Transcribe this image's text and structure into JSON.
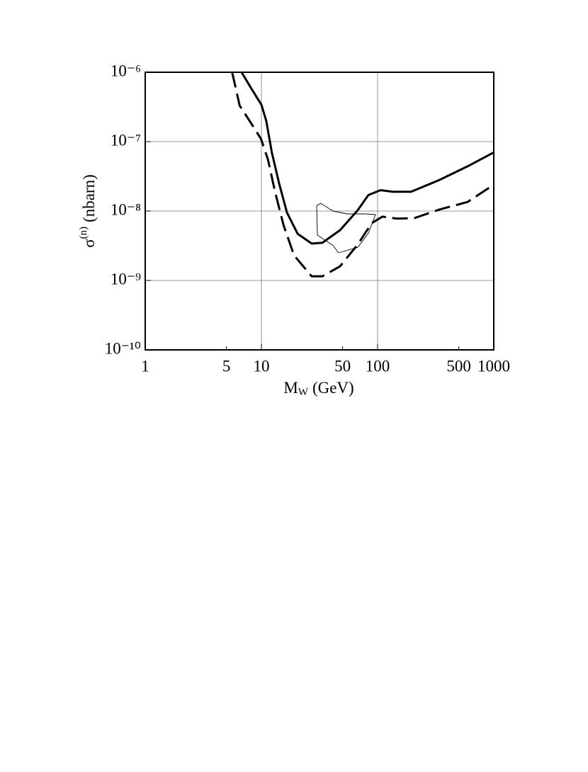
{
  "chart_data": {
    "type": "line",
    "x_label": [
      "M",
      "W",
      "(GeV)"
    ],
    "y_label": [
      "σ",
      "(n)",
      "(nbarn)"
    ],
    "xscale": "log",
    "yscale": "log",
    "grid": true,
    "xlim": [
      1,
      1000
    ],
    "ylim": [
      1e-10,
      1e-06
    ],
    "xticks": [
      1,
      5,
      10,
      50,
      100,
      500,
      1000
    ],
    "yticks": [
      {
        "value": 1e-10,
        "label": "10⁻¹⁰"
      },
      {
        "value": 1e-09,
        "label": "10⁻⁹"
      },
      {
        "value": 1e-08,
        "label": "10⁻⁸"
      },
      {
        "value": 1e-07,
        "label": "10⁻⁷"
      },
      {
        "value": 1e-06,
        "label": "10⁻⁶"
      }
    ],
    "series": [
      {
        "color": "#000000",
        "style": "solid",
        "x": [
          6.75,
          8.2,
          10,
          11.0,
          12.3,
          14.2,
          16.6,
          20.5,
          27.1,
          33.5,
          47.5,
          67.5,
          83.3,
          106,
          136,
          194,
          339,
          594,
          1000
        ],
        "y": [
          1e-06,
          5.8e-07,
          3.4e-07,
          2e-07,
          7e-08,
          2.5e-08,
          9.5e-09,
          4.7e-09,
          3.4e-09,
          3.5e-09,
          5.3e-09,
          1.03e-08,
          1.7e-08,
          2e-08,
          1.9e-08,
          1.9e-08,
          2.8e-08,
          4.4e-08,
          7e-08
        ]
      },
      {
        "color": "#000000",
        "style": "dashed",
        "x": [
          5.6,
          6.5,
          7.9,
          9.9,
          11.4,
          13.1,
          15.5,
          19.1,
          27.1,
          33.5,
          47.5,
          67.5,
          89,
          110,
          146,
          207,
          339,
          594,
          1000
        ],
        "y": [
          1e-06,
          3.3e-07,
          2e-07,
          1.1e-07,
          5.5e-08,
          1.9e-08,
          6.3e-09,
          2.3e-09,
          1.15e-09,
          1.15e-09,
          1.6e-09,
          3.3e-09,
          6.7e-09,
          8.3e-09,
          7.8e-09,
          7.9e-09,
          1.05e-08,
          1.35e-08,
          2.4e-08
        ]
      },
      {
        "color": "#000000",
        "style": "thin",
        "x": [
          29.9,
          32.5,
          41.3,
          54.7,
          77.7,
          95.9,
          83.3,
          67.5,
          46.2,
          41.3,
          30.3,
          29.9
        ],
        "y": [
          1.2e-08,
          1.29e-08,
          1e-08,
          9.1e-09,
          9.1e-09,
          8.9e-09,
          4.8e-09,
          3e-09,
          2.5e-09,
          3.2e-09,
          4.5e-09,
          1.2e-08
        ]
      }
    ]
  }
}
